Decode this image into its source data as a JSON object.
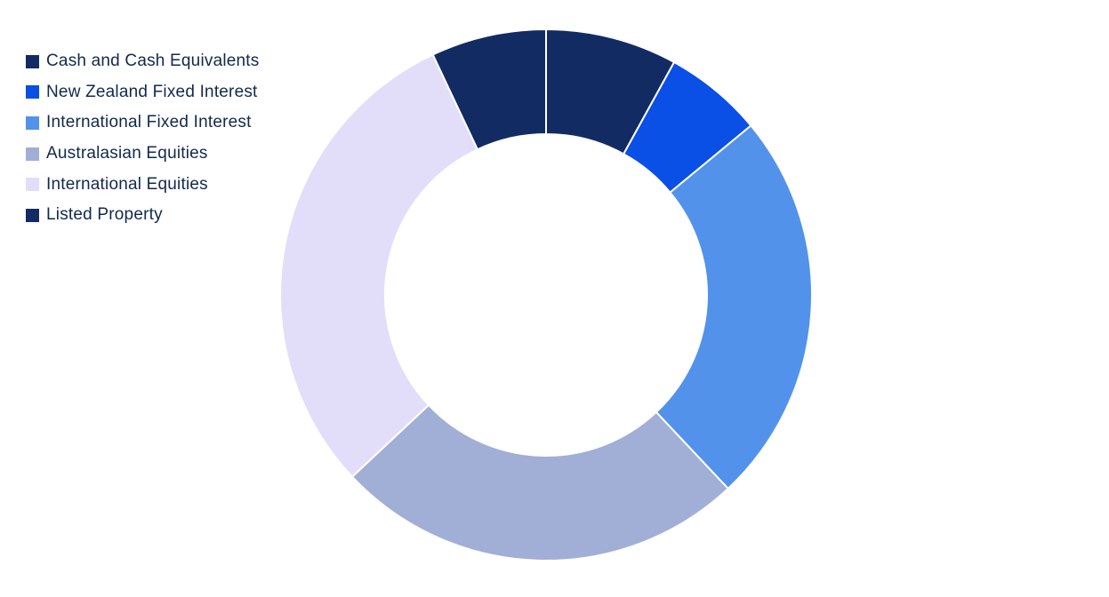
{
  "chart_data": {
    "type": "pie",
    "variant": "donut",
    "legend_position": "top-left",
    "start_angle_deg": 0,
    "direction": "clockwise",
    "slices": [
      {
        "label": "Cash and Cash Equivalents",
        "value": 8,
        "color": "#132b63"
      },
      {
        "label": "New Zealand Fixed Interest",
        "value": 6,
        "color": "#0a4fe6"
      },
      {
        "label": "International Fixed Interest",
        "value": 24,
        "color": "#5292ea"
      },
      {
        "label": "Australasian Equities",
        "value": 25,
        "color": "#a1aed6"
      },
      {
        "label": "International Equities",
        "value": 30,
        "color": "#e2def9"
      },
      {
        "label": "Listed Property",
        "value": 7,
        "color": "#132b63"
      }
    ]
  }
}
